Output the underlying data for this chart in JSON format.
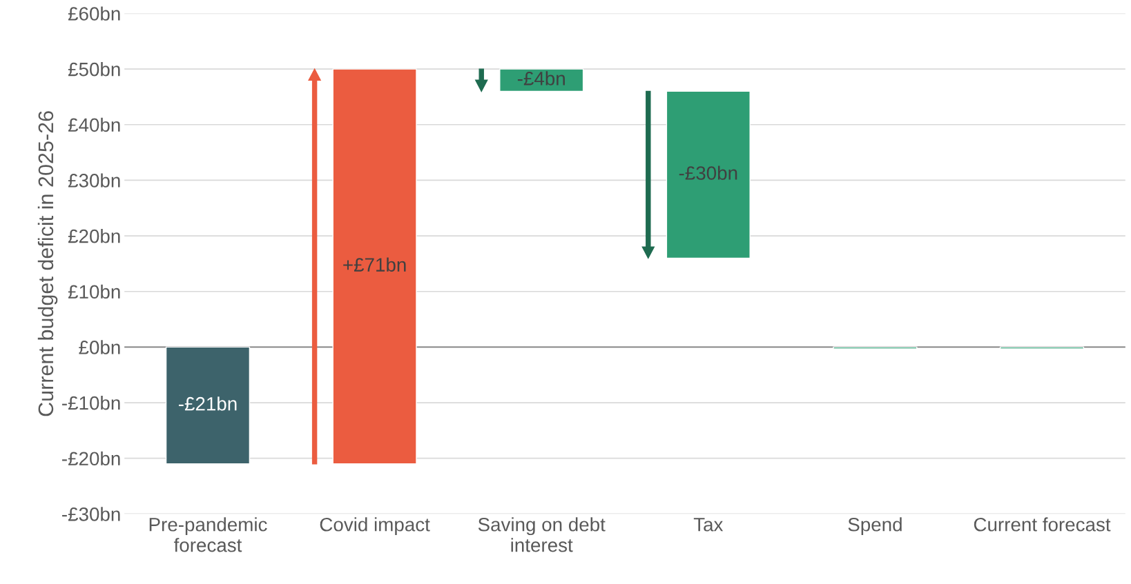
{
  "chart_data": {
    "type": "bar",
    "ylabel": "Current budget deficit in 2025-26",
    "categories": [
      "Pre-pandemic\nforecast",
      "Covid impact",
      "Saving on debt\ninterest",
      "Tax",
      "Spend",
      "Current forecast"
    ],
    "values": [
      -21,
      71,
      -4,
      -30,
      -0.3,
      -0.3
    ],
    "base": [
      0,
      -21,
      50,
      46,
      0,
      0
    ],
    "colors": [
      "#3d636b",
      "#eb5c40",
      "#2e9e74",
      "#2e9e74",
      "#2e9e74",
      "#2e9e74"
    ],
    "value_labels": [
      "-£21bn",
      "+£71bn",
      "-£4bn",
      "-£30bn",
      null,
      null
    ],
    "ylim": [
      -30,
      60
    ],
    "yticks": [
      {
        "value": -30,
        "label": "-£30bn"
      },
      {
        "value": -20,
        "label": "-£20bn"
      },
      {
        "value": -10,
        "label": "-£10bn"
      },
      {
        "value": 0,
        "label": "£0bn"
      },
      {
        "value": 10,
        "label": "£10bn"
      },
      {
        "value": 20,
        "label": "£20bn"
      },
      {
        "value": 30,
        "label": "£30bn"
      },
      {
        "value": 40,
        "label": "£40bn"
      },
      {
        "value": 50,
        "label": "£50bn"
      },
      {
        "value": 60,
        "label": "£60bn"
      }
    ],
    "grid": "y",
    "ref_lines": [
      {
        "axis": "y",
        "value": 0,
        "label": null,
        "color": "#808080"
      }
    ]
  }
}
